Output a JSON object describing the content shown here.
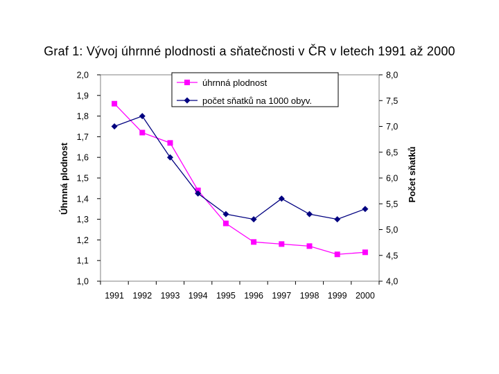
{
  "chart_data": {
    "type": "line",
    "title": "Graf 1: Vývoj úhrnné plodnosti a sňatečnosti v ČR v letech 1991 až 2000",
    "x": [
      "1991",
      "1992",
      "1993",
      "1994",
      "1995",
      "1996",
      "1997",
      "1998",
      "1999",
      "2000"
    ],
    "y_left": {
      "label": "Úhrnná plodnost",
      "range": [
        1.0,
        2.0
      ],
      "ticks": [
        "1,0",
        "1,1",
        "1,2",
        "1,3",
        "1,4",
        "1,5",
        "1,6",
        "1,7",
        "1,8",
        "1,9",
        "2,0"
      ]
    },
    "y_right": {
      "label": "Počet sňatků",
      "range": [
        4.0,
        8.0
      ],
      "ticks": [
        "4,0",
        "4,5",
        "5,0",
        "5,5",
        "6,0",
        "6,5",
        "7,0",
        "7,5",
        "8,0"
      ]
    },
    "series": [
      {
        "name": "úhrnná plodnost",
        "axis": "left",
        "color": "#ff00ff",
        "marker": "square",
        "values": [
          1.86,
          1.72,
          1.67,
          1.44,
          1.28,
          1.19,
          1.18,
          1.17,
          1.13,
          1.14
        ]
      },
      {
        "name": "počet sňatků na 1000 obyv.",
        "axis": "right",
        "color": "#000080",
        "marker": "diamond",
        "values": [
          7.0,
          7.2,
          6.4,
          5.7,
          5.3,
          5.2,
          5.6,
          5.3,
          5.2,
          5.4
        ]
      }
    ],
    "legend": "top-center",
    "grid": false
  }
}
